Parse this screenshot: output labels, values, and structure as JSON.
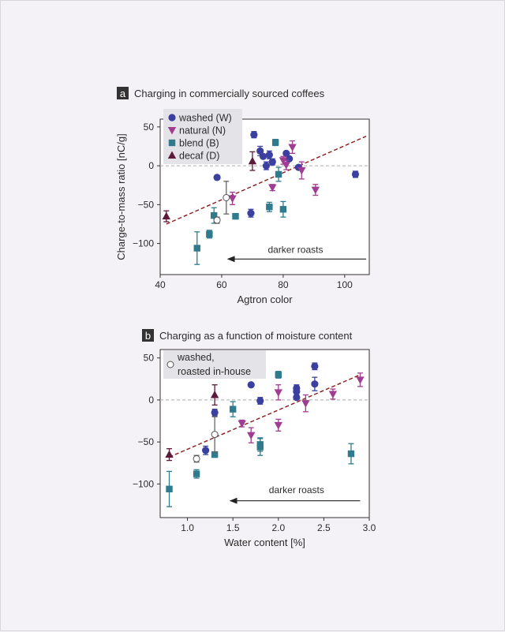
{
  "colors": {
    "background": "#f4f2f6",
    "plot_bg": "#ffffff",
    "washed": "#3b3fa0",
    "natural": "#a03d92",
    "blend": "#2f7a8c",
    "decaf": "#5e1a3a",
    "open": "#ffffff",
    "fit": "#8b1a1a",
    "zero": "#aaaaaa",
    "legend_bg": "#e4e3e7"
  },
  "chart_data": [
    {
      "panel": "a",
      "type": "scatter",
      "title": "Charging in commercially sourced coffees",
      "xlabel": "Agtron color",
      "ylabel": "Charge-to-mass ratio [nC/g]",
      "xlim": [
        40,
        108
      ],
      "ylim": [
        -140,
        60
      ],
      "xticks": [
        40,
        60,
        80,
        100
      ],
      "xtick_labels": [
        "40",
        "60",
        "80",
        "100"
      ],
      "yticks": [
        50,
        0,
        -50,
        -100
      ],
      "ytick_labels": [
        "50",
        "0",
        "−50",
        "−100"
      ],
      "legend": [
        {
          "label": "washed (W)",
          "marker": "circle",
          "color": "washed"
        },
        {
          "label": "natural (N)",
          "marker": "triangle-down",
          "color": "natural"
        },
        {
          "label": "blend (B)",
          "marker": "square",
          "color": "blend"
        },
        {
          "label": "decaf (D)",
          "marker": "triangle-up",
          "color": "decaf"
        }
      ],
      "annotation": {
        "label": "darker roasts",
        "arrow_from": 107,
        "arrow_to": 62,
        "y": -120,
        "label_x": 84,
        "label_y": -112
      },
      "fit_line": {
        "x": [
          42,
          107
        ],
        "y": [
          -75,
          38
        ]
      },
      "series": [
        {
          "name": "washed",
          "marker": "circle",
          "color": "washed",
          "points": [
            {
              "x": 58.5,
              "y": -15
            },
            {
              "x": 69.5,
              "y": -61,
              "err": 5
            },
            {
              "x": 70.5,
              "y": 40,
              "err": 4
            },
            {
              "x": 72.5,
              "y": 19,
              "err": 6
            },
            {
              "x": 73.5,
              "y": 12
            },
            {
              "x": 74.5,
              "y": 0,
              "err": 5
            },
            {
              "x": 75.5,
              "y": 14,
              "err": 5
            },
            {
              "x": 76.5,
              "y": 5,
              "err": 4
            },
            {
              "x": 81,
              "y": 16
            },
            {
              "x": 82,
              "y": 9
            },
            {
              "x": 85,
              "y": -2
            },
            {
              "x": 103.5,
              "y": -11,
              "err": 4
            }
          ]
        },
        {
          "name": "natural",
          "marker": "triangle-down",
          "color": "natural",
          "points": [
            {
              "x": 63.5,
              "y": -42,
              "err": 8
            },
            {
              "x": 76.5,
              "y": -28,
              "err": 4
            },
            {
              "x": 80,
              "y": 7,
              "err": 5
            },
            {
              "x": 81,
              "y": 1,
              "err": 6
            },
            {
              "x": 83,
              "y": 24,
              "err": 8
            },
            {
              "x": 86,
              "y": -6,
              "err": 11
            },
            {
              "x": 90.5,
              "y": -31,
              "err": 7
            }
          ]
        },
        {
          "name": "blend",
          "marker": "square",
          "color": "blend",
          "points": [
            {
              "x": 52,
              "y": -106,
              "err": 21
            },
            {
              "x": 56,
              "y": -88,
              "err": 5
            },
            {
              "x": 57.5,
              "y": -64,
              "err": 10
            },
            {
              "x": 64.5,
              "y": -65
            },
            {
              "x": 75.5,
              "y": -53,
              "err": 6
            },
            {
              "x": 77.5,
              "y": 30,
              "err": 4
            },
            {
              "x": 78.5,
              "y": -11,
              "err": 9
            },
            {
              "x": 80,
              "y": -56,
              "err": 10
            }
          ]
        },
        {
          "name": "decaf",
          "marker": "triangle-up",
          "color": "decaf",
          "points": [
            {
              "x": 42,
              "y": -65,
              "err": 7
            },
            {
              "x": 70,
              "y": 6,
              "err": 12
            }
          ]
        },
        {
          "name": "washed, roasted in-house",
          "marker": "open-circle",
          "color": "open",
          "points": [
            {
              "x": 58.5,
              "y": -70,
              "err": 4
            },
            {
              "x": 61.5,
              "y": -41,
              "err": 21
            }
          ]
        }
      ]
    },
    {
      "panel": "b",
      "type": "scatter",
      "title": "Charging as a function of moisture content",
      "xlabel": "Water content [%]",
      "ylabel": "",
      "xlim": [
        0.7,
        3.0
      ],
      "ylim": [
        -140,
        60
      ],
      "xticks": [
        1.0,
        1.5,
        2.0,
        2.5,
        3.0
      ],
      "xtick_labels": [
        "1.0",
        "1.5",
        "2.0",
        "2.5",
        "3.0"
      ],
      "yticks": [
        50,
        0,
        -50,
        -100
      ],
      "ytick_labels": [
        "50",
        "0",
        "−50",
        "−100"
      ],
      "legend": [
        {
          "label": "washed,",
          "label2": "roasted in-house",
          "marker": "open-circle",
          "color": "open"
        }
      ],
      "annotation": {
        "label": "darker roasts",
        "arrow_from": 2.9,
        "arrow_to": 1.47,
        "y": -120,
        "label_x": 2.2,
        "label_y": -111
      },
      "fit_line": {
        "x": [
          0.8,
          2.9
        ],
        "y": [
          -68,
          30
        ]
      },
      "series": [
        {
          "name": "washed",
          "marker": "circle",
          "color": "washed",
          "points": [
            {
              "x": 1.2,
              "y": -60,
              "err": 5
            },
            {
              "x": 1.3,
              "y": -15,
              "err": 4
            },
            {
              "x": 1.7,
              "y": 18
            },
            {
              "x": 1.8,
              "y": -1,
              "err": 4
            },
            {
              "x": 2.2,
              "y": 14,
              "err": 4
            },
            {
              "x": 2.2,
              "y": 10,
              "err": 4
            },
            {
              "x": 2.2,
              "y": 3
            },
            {
              "x": 2.4,
              "y": 40,
              "err": 4
            },
            {
              "x": 2.4,
              "y": 19,
              "err": 8
            }
          ]
        },
        {
          "name": "natural",
          "marker": "triangle-down",
          "color": "natural",
          "points": [
            {
              "x": 1.6,
              "y": -28,
              "err": 4
            },
            {
              "x": 1.7,
              "y": -42,
              "err": 9
            },
            {
              "x": 2.0,
              "y": 9,
              "err": 9
            },
            {
              "x": 2.0,
              "y": -30,
              "err": 7
            },
            {
              "x": 2.3,
              "y": -4,
              "err": 10
            },
            {
              "x": 2.6,
              "y": 7,
              "err": 6
            },
            {
              "x": 2.9,
              "y": 24,
              "err": 8
            }
          ]
        },
        {
          "name": "blend",
          "marker": "square",
          "color": "blend",
          "points": [
            {
              "x": 0.8,
              "y": -106,
              "err": 21
            },
            {
              "x": 1.1,
              "y": -88,
              "err": 5
            },
            {
              "x": 1.3,
              "y": -65
            },
            {
              "x": 1.5,
              "y": -11,
              "err": 9
            },
            {
              "x": 1.8,
              "y": -53,
              "err": 8
            },
            {
              "x": 1.8,
              "y": -56,
              "err": 10
            },
            {
              "x": 2.0,
              "y": 30,
              "err": 4
            },
            {
              "x": 2.8,
              "y": -64,
              "err": 12
            }
          ]
        },
        {
          "name": "decaf",
          "marker": "triangle-up",
          "color": "decaf",
          "points": [
            {
              "x": 0.8,
              "y": -65,
              "err": 7
            },
            {
              "x": 1.3,
              "y": 6,
              "err": 12
            }
          ]
        },
        {
          "name": "washed, roasted in-house",
          "marker": "open-circle",
          "color": "open",
          "points": [
            {
              "x": 1.1,
              "y": -70,
              "err": 4
            },
            {
              "x": 1.3,
              "y": -41,
              "err": 21
            }
          ]
        }
      ]
    }
  ]
}
